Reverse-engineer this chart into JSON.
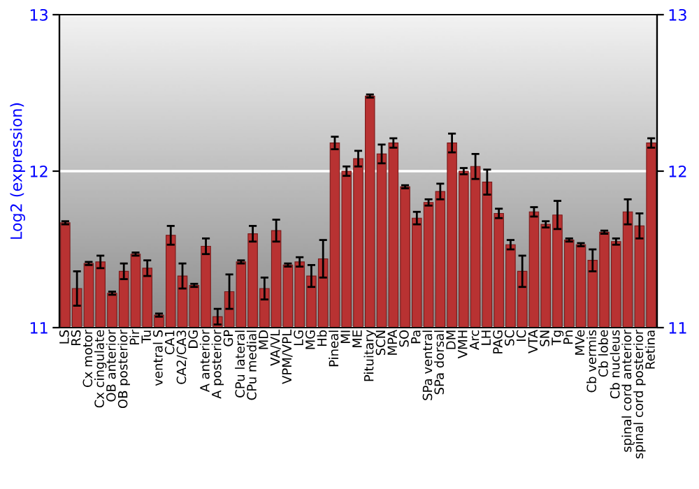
{
  "chart_data": {
    "type": "bar",
    "ylabel": "Log2 (expression)",
    "categories": [
      "LS",
      "RS",
      "Cx motor",
      "Cx cingulate",
      "OB anterior",
      "OB posterior",
      "Pir",
      "Tu",
      "ventral S",
      "CA1",
      "CA2/CA3",
      "DG",
      "A anterior",
      "A posterior",
      "GP",
      "CPu lateral",
      "CPu medial",
      "MD",
      "VA/VL",
      "VPM/VPL",
      "LG",
      "MG",
      "Hb",
      "Pineal",
      "MI",
      "ME",
      "Pituitary",
      "SCN",
      "MPA",
      "SO",
      "Pa",
      "SPa ventral",
      "SPa dorsal",
      "DM",
      "VMH",
      "Arc",
      "LH",
      "PAG",
      "SC",
      "IC",
      "VTA",
      "SN",
      "Tg",
      "Pn",
      "MVe",
      "Cb vermis",
      "Cb lobe",
      "Cb nucleus",
      "spinal cord anterior",
      "spinal cord posterior",
      "Retina"
    ],
    "series": [
      {
        "color": "#b83232",
        "values": [
          11.67,
          11.25,
          11.41,
          11.42,
          11.22,
          11.36,
          11.47,
          11.38,
          11.08,
          11.59,
          11.33,
          11.27,
          11.52,
          11.07,
          11.23,
          11.42,
          11.6,
          11.25,
          11.62,
          11.4,
          11.42,
          11.33,
          11.44,
          12.18,
          12.0,
          12.08,
          12.48,
          12.11,
          12.18,
          11.9,
          11.7,
          11.8,
          11.87,
          12.18,
          12.0,
          12.03,
          11.93,
          11.73,
          11.53,
          11.36,
          11.74,
          11.66,
          11.72,
          11.56,
          11.53,
          11.43,
          11.61,
          11.55,
          11.74,
          11.65,
          12.18
        ],
        "errors": [
          0.01,
          0.11,
          0.01,
          0.04,
          0.01,
          0.05,
          0.01,
          0.05,
          0.01,
          0.06,
          0.08,
          0.01,
          0.05,
          0.05,
          0.11,
          0.01,
          0.05,
          0.07,
          0.07,
          0.01,
          0.03,
          0.07,
          0.12,
          0.04,
          0.03,
          0.05,
          0.01,
          0.06,
          0.03,
          0.01,
          0.04,
          0.02,
          0.05,
          0.06,
          0.02,
          0.08,
          0.08,
          0.03,
          0.03,
          0.1,
          0.03,
          0.02,
          0.09,
          0.01,
          0.01,
          0.07,
          0.01,
          0.02,
          0.08,
          0.08,
          0.03
        ]
      }
    ],
    "ylim": [
      11,
      13
    ],
    "yticks": [
      11,
      12,
      13
    ],
    "y2lim": [
      11,
      13
    ],
    "y2ticks": [
      11,
      12,
      13
    ],
    "grid": "y"
  }
}
